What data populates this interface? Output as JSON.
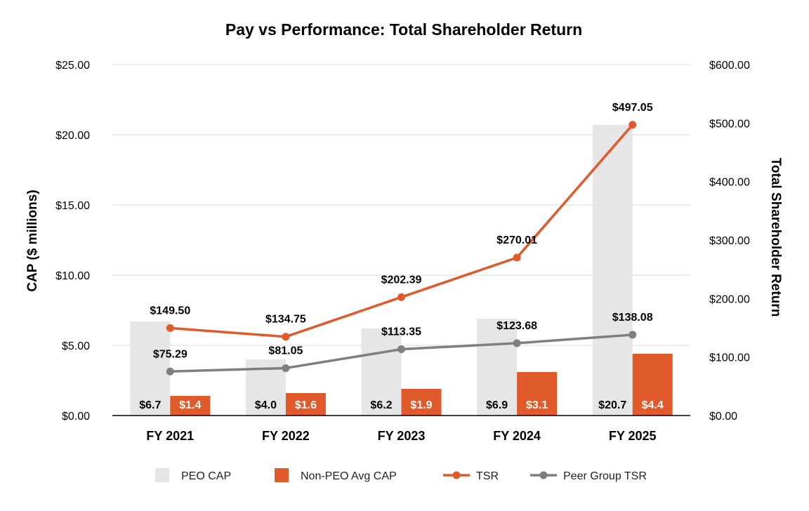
{
  "chart_data": {
    "type": "bar",
    "title": "Pay vs Performance: Total Shareholder Return",
    "categories": [
      "FY 2021",
      "FY 2022",
      "FY 2023",
      "FY 2024",
      "FY 2025"
    ],
    "y_left": {
      "label": "CAP ($ millions)",
      "ylim": [
        0,
        25
      ],
      "ticks": [
        0,
        5,
        10,
        15,
        20,
        25
      ],
      "tick_labels": [
        "$0.00",
        "$5.00",
        "$10.00",
        "$15.00",
        "$20.00",
        "$25.00"
      ]
    },
    "y_right": {
      "label": "Total Shareholder Return",
      "ylim": [
        0,
        600
      ],
      "ticks": [
        0,
        100,
        200,
        300,
        400,
        500,
        600
      ],
      "tick_labels": [
        "$0.00",
        "$100.00",
        "$200.00",
        "$300.00",
        "$400.00",
        "$500.00",
        "$600.00"
      ]
    },
    "series": [
      {
        "name": "PEO CAP",
        "kind": "bar",
        "axis": "left",
        "color": "#e6e6e6",
        "label_color": "#000000",
        "values": [
          6.7,
          4.0,
          6.2,
          6.9,
          20.7
        ],
        "labels": [
          "$6.7",
          "$4.0",
          "$6.2",
          "$6.9",
          "$20.7"
        ]
      },
      {
        "name": "Non-PEO Avg CAP",
        "kind": "bar",
        "axis": "left",
        "color": "#e05a2b",
        "label_color": "#ffffff",
        "values": [
          1.4,
          1.6,
          1.9,
          3.1,
          4.4
        ],
        "labels": [
          "$1.4",
          "$1.6",
          "$1.9",
          "$3.1",
          "$4.4"
        ]
      },
      {
        "name": "TSR",
        "kind": "line",
        "axis": "right",
        "color": "#e05a2b",
        "values": [
          149.5,
          134.75,
          202.39,
          270.01,
          497.05
        ],
        "labels": [
          "$149.50",
          "$134.75",
          "$202.39",
          "$270.01",
          "$497.05"
        ]
      },
      {
        "name": "Peer Group TSR",
        "kind": "line",
        "axis": "right",
        "color": "#7f7f7f",
        "values": [
          75.29,
          81.05,
          113.35,
          123.68,
          138.08
        ],
        "labels": [
          "$75.29",
          "$81.05",
          "$113.35",
          "$123.68",
          "$138.08"
        ]
      }
    ],
    "grid": true,
    "legend_position": "bottom"
  }
}
